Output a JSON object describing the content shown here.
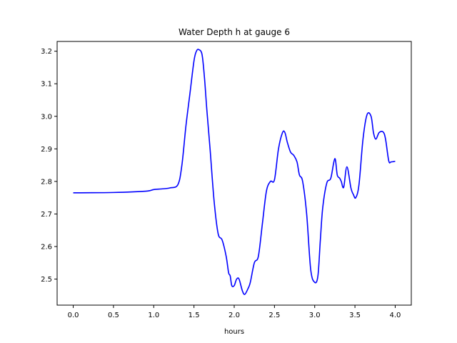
{
  "chart_data": {
    "type": "line",
    "title": "Water Depth h at gauge 6",
    "xlabel": "hours",
    "ylabel": "",
    "xlim": [
      -0.2,
      4.2
    ],
    "ylim": [
      2.42,
      3.23
    ],
    "xticks": [
      "0.0",
      "0.5",
      "1.0",
      "1.5",
      "2.0",
      "2.5",
      "3.0",
      "3.5",
      "4.0"
    ],
    "yticks": [
      "2.5",
      "2.6",
      "2.7",
      "2.8",
      "2.9",
      "3.0",
      "3.1",
      "3.2"
    ],
    "grid": false,
    "series": [
      {
        "color": "#0000ff",
        "x": [
          0.0,
          0.5,
          0.9,
          1.0,
          1.1,
          1.2,
          1.3,
          1.35,
          1.4,
          1.45,
          1.5,
          1.53,
          1.56,
          1.6,
          1.63,
          1.66,
          1.7,
          1.75,
          1.8,
          1.85,
          1.9,
          1.93,
          1.95,
          1.97,
          2.0,
          2.03,
          2.06,
          2.1,
          2.13,
          2.17,
          2.2,
          2.25,
          2.3,
          2.35,
          2.4,
          2.45,
          2.5,
          2.55,
          2.6,
          2.63,
          2.66,
          2.7,
          2.74,
          2.78,
          2.81,
          2.85,
          2.9,
          2.95,
          3.0,
          3.04,
          3.07,
          3.1,
          3.15,
          3.2,
          3.25,
          3.28,
          3.31,
          3.33,
          3.36,
          3.4,
          3.45,
          3.48,
          3.51,
          3.55,
          3.6,
          3.65,
          3.7,
          3.73,
          3.76,
          3.8,
          3.85,
          3.88,
          3.92,
          3.95,
          4.0
        ],
        "y": [
          2.765,
          2.766,
          2.77,
          2.775,
          2.777,
          2.78,
          2.79,
          2.85,
          2.97,
          3.07,
          3.17,
          3.2,
          3.205,
          3.19,
          3.12,
          3.02,
          2.9,
          2.74,
          2.64,
          2.62,
          2.57,
          2.52,
          2.51,
          2.48,
          2.48,
          2.5,
          2.5,
          2.465,
          2.453,
          2.47,
          2.49,
          2.55,
          2.57,
          2.67,
          2.77,
          2.8,
          2.805,
          2.9,
          2.95,
          2.95,
          2.92,
          2.89,
          2.88,
          2.86,
          2.82,
          2.8,
          2.7,
          2.53,
          2.49,
          2.51,
          2.62,
          2.72,
          2.795,
          2.81,
          2.87,
          2.82,
          2.81,
          2.8,
          2.782,
          2.845,
          2.78,
          2.76,
          2.75,
          2.79,
          2.93,
          3.005,
          3.0,
          2.95,
          2.93,
          2.95,
          2.952,
          2.93,
          2.863,
          2.86,
          2.862
        ]
      }
    ]
  }
}
